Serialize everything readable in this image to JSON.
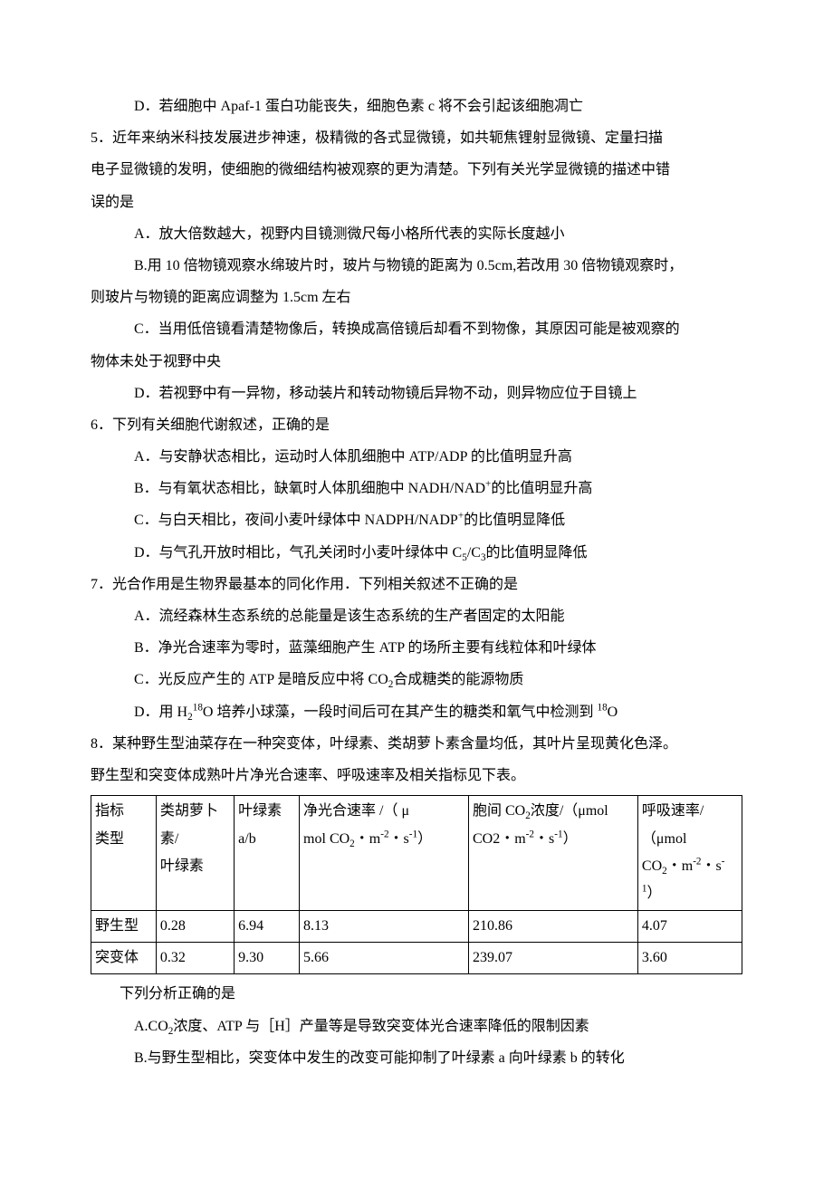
{
  "q4_d": "D．若细胞中 Apaf-1 蛋白功能丧失，细胞色素 c 将不会引起该细胞凋亡",
  "q5_stem_1": "5．近年来纳米科技发展进步神速，极精微的各式显微镜，如共轭焦锂射显微镜、定量扫描",
  "q5_stem_2": "电子显微镜的发明，使细胞的微细结构被观察的更为清楚。下列有关光学显微镜的描述中错",
  "q5_stem_3": "误的是",
  "q5_a": "A．放大倍数越大，视野内目镜测微尺每小格所代表的实际长度越小",
  "q5_b_1": "B.用 10 倍物镜观察水绵玻片时，玻片与物镜的距离为 0.5cm,若改用 30 倍物镜观察时，",
  "q5_b_2": "则玻片与物镜的距离应调整为 1.5cm 左右",
  "q5_c_1": "C．当用低倍镜看清楚物像后，转换成高倍镜后却看不到物像，其原因可能是被观察的",
  "q5_c_2": "物体未处于视野中央",
  "q5_d": "D．若视野中有一异物，移动装片和转动物镜后异物不动，则异物应位于目镜上",
  "q6_stem": "6．下列有关细胞代谢叙述，正确的是",
  "q6_a": "A．与安静状态相比，运动时人体肌细胞中 ATP/ADP 的比值明显升高",
  "q6_b_pre": "B．与有氧状态相比，缺氧时人体肌细胞中 NADH/NAD",
  "q6_b_suf": "的比值明显升高",
  "q6_c_pre": "C．与白天相比，夜间小麦叶绿体中 NADPH/NADP",
  "q6_c_suf": "的比值明显降低",
  "q6_d_pre": "D．与气孔开放时相比，气孔关闭时小麦叶绿体中 C",
  "q6_d_mid": "/C",
  "q6_d_suf": "的比值明显降低",
  "q7_stem": "7．光合作用是生物界最基本的同化作用．下列相关叙述不正确的是",
  "q7_a": "A．流经森林生态系统的总能量是该生态系统的生产者固定的太阳能",
  "q7_b": "B．净光合速率为零时，蓝藻细胞产生 ATP 的场所主要有线粒体和叶绿体",
  "q7_c_pre": "C．光反应产生的 ATP 是暗反应中将 CO",
  "q7_c_suf": "合成糖类的能源物质",
  "q7_d_pre": "D．用 H",
  "q7_d_mid": "O 培养小球藻，一段时间后可在其产生的糖类和氧气中检测到 ",
  "q7_d_suf": "O",
  "q8_stem_1": "8．某种野生型油菜存在一种突变体，叶绿素、类胡萝卜素含量均低，其叶片呈现黄化色泽。",
  "q8_stem_2": "野生型和突变体成熟叶片净光合速率、呼吸速率及相关指标见下表。",
  "tbl": {
    "h_indicator": "指标",
    "h_type": "类型",
    "h_col2a": "类胡萝卜素/",
    "h_col2b": "叶绿素",
    "h_col3a": "叶绿素",
    "h_col3b": "a/b",
    "h_col4a_pre": "净光合速率 /（ μ",
    "h_col4b_pre": "mol CO",
    "h_col4b_mid": "・m",
    "h_col4b_mid2": "・s",
    "h_col4b_suf": "）",
    "h_col5a_pre": "胞间 CO",
    "h_col5a_mid": "浓度/（μmol",
    "h_col5b_pre": "CO2・m",
    "h_col5b_mid": "・s",
    "h_col5b_suf": "）",
    "h_col6a": "呼吸速率/（μmol",
    "h_col6b_pre": "CO",
    "h_col6b_mid": "・m",
    "h_col6b_mid2": "・s",
    "h_col6b_suf": "）",
    "r1_name": "野生型",
    "r1_v1": "0.28",
    "r1_v2": "6.94",
    "r1_v3": "8.13",
    "r1_v4": "210.86",
    "r1_v5": "4.07",
    "r2_name": "突变体",
    "r2_v1": "0.32",
    "r2_v2": "9.30",
    "r2_v3": "5.66",
    "r2_v4": "239.07",
    "r2_v5": "3.60"
  },
  "q8_tail": "下列分析正确的是",
  "q8_a_pre": "A.CO",
  "q8_a_suf": "浓度、ATP 与［H］产量等是导致突变体光合速率降低的限制因素",
  "q8_b": "B.与野生型相比，突变体中发生的改变可能抑制了叶绿素 a 向叶绿素 b 的转化",
  "colors": {
    "text": "#000000",
    "background": "#ffffff",
    "border": "#000000"
  },
  "font": {
    "family": "SimSun",
    "size_pt": 12,
    "line_height": 2.2
  }
}
